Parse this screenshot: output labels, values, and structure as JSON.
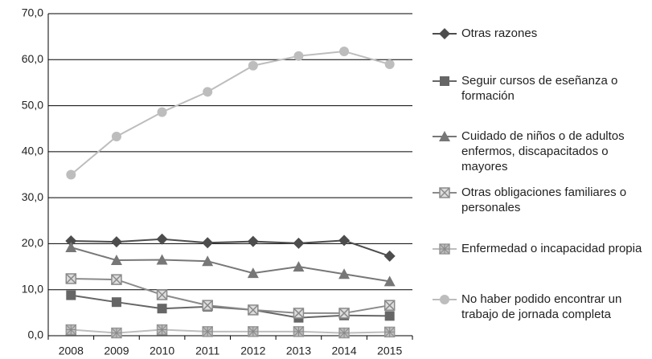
{
  "chart_data": {
    "type": "line",
    "categories": [
      "2008",
      "2009",
      "2010",
      "2011",
      "2012",
      "2013",
      "2014",
      "2015"
    ],
    "series": [
      {
        "name": "Otras razones",
        "color": "#4d4d4d",
        "marker": "diamond",
        "values": [
          20.6,
          20.4,
          21.0,
          20.2,
          20.5,
          20.1,
          20.7,
          17.3
        ]
      },
      {
        "name": "Seguir cursos de eseñanza o formación",
        "color": "#666666",
        "marker": "square",
        "values": [
          8.8,
          7.3,
          5.9,
          6.3,
          5.6,
          3.9,
          4.4,
          4.3
        ]
      },
      {
        "name": "Cuidado de niños o de adultos enfermos, discapacitados o mayores",
        "color": "#777777",
        "marker": "triangle",
        "values": [
          19.2,
          16.4,
          16.5,
          16.2,
          13.6,
          15.0,
          13.4,
          11.8
        ]
      },
      {
        "name": "Otras obligaciones familiares o personales",
        "color": "#8a8a8a",
        "marker": "boxcross",
        "values": [
          12.4,
          12.2,
          8.9,
          6.6,
          5.6,
          4.9,
          4.9,
          6.6
        ]
      },
      {
        "name": "Enfermedad o incapacidad propia",
        "color": "#bdbdbd",
        "marker": "hatch",
        "values": [
          1.3,
          0.6,
          1.3,
          0.9,
          0.9,
          0.9,
          0.6,
          0.8
        ]
      },
      {
        "name": "No haber podido encontrar un trabajo de jornada completa",
        "color": "#bdbdbd",
        "marker": "circle",
        "values": [
          35.0,
          43.3,
          48.6,
          53.0,
          58.7,
          60.8,
          61.8,
          59.0
        ]
      }
    ],
    "ylim": [
      0,
      70
    ],
    "yticks": [
      {
        "value": 0,
        "label": "0,0"
      },
      {
        "value": 10,
        "label": "10,0"
      },
      {
        "value": 20,
        "label": "20,0"
      },
      {
        "value": 30,
        "label": "30,0"
      },
      {
        "value": 40,
        "label": "40,0"
      },
      {
        "value": 50,
        "label": "50,0"
      },
      {
        "value": 60,
        "label": "60,0"
      },
      {
        "value": 70,
        "label": "70,0"
      }
    ],
    "grid": true,
    "legend": "right"
  }
}
